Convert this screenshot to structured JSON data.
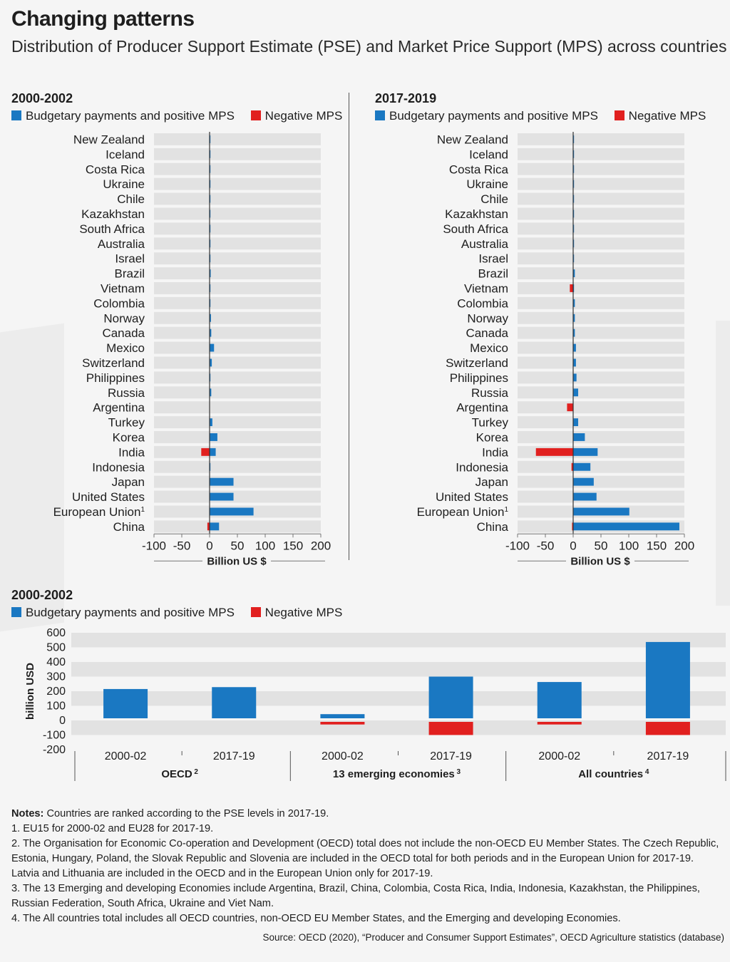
{
  "title": "Changing patterns",
  "subtitle": "Distribution of Producer Support Estimate (PSE) and Market Price Support (MPS) across countries",
  "colors": {
    "positive": "#1a78c2",
    "negative": "#e1201f",
    "band": "#e2e2e2",
    "axis": "#333333"
  },
  "legend": {
    "positive": "Budgetary payments and positive MPS",
    "negative": "Negative MPS"
  },
  "chart_data": [
    {
      "type": "bar",
      "orientation": "horizontal",
      "title": "2000-2002",
      "xlabel": "Billion US $",
      "xlim": [
        -100,
        200
      ],
      "xticks": [
        -100,
        -50,
        0,
        50,
        100,
        150,
        200
      ],
      "categories": [
        "New Zealand",
        "Iceland",
        "Costa Rica",
        "Ukraine",
        "Chile",
        "Kazakhstan",
        "South Africa",
        "Australia",
        "Israel",
        "Brazil",
        "Vietnam",
        "Colombia",
        "Norway",
        "Canada",
        "Mexico",
        "Switzerland",
        "Philippines",
        "Russia",
        "Argentina",
        "Turkey",
        "Korea",
        "India",
        "Indonesia",
        "Japan",
        "United States",
        "European Union",
        "China"
      ],
      "category_notes": [
        "",
        "",
        "",
        "",
        "",
        "",
        "",
        "",
        "",
        "",
        "",
        "",
        "",
        "",
        "",
        "",
        "",
        "",
        "",
        "",
        "",
        "",
        "",
        "",
        "",
        "1",
        ""
      ],
      "series": [
        {
          "name": "Budgetary payments and positive MPS",
          "values": [
            0.3,
            0.1,
            0.2,
            0.3,
            0.2,
            0.3,
            0.4,
            0.8,
            0.6,
            2,
            0.2,
            1.5,
            2.5,
            3,
            8,
            4,
            1.5,
            3,
            0,
            5,
            14,
            11,
            1.5,
            43,
            43,
            79,
            17
          ]
        },
        {
          "name": "Negative MPS",
          "values": [
            0,
            0,
            0,
            0,
            0,
            0,
            0,
            0,
            0,
            0,
            0,
            0,
            0,
            0,
            0,
            0,
            0,
            0,
            0,
            0,
            0,
            -15,
            0,
            0,
            0,
            0,
            -4
          ]
        }
      ]
    },
    {
      "type": "bar",
      "orientation": "horizontal",
      "title": "2017-2019",
      "xlabel": "Billion US $",
      "xlim": [
        -100,
        200
      ],
      "xticks": [
        -100,
        -50,
        0,
        50,
        100,
        150,
        200
      ],
      "categories": [
        "New Zealand",
        "Iceland",
        "Costa Rica",
        "Ukraine",
        "Chile",
        "Kazakhstan",
        "South Africa",
        "Australia",
        "Israel",
        "Brazil",
        "Vietnam",
        "Colombia",
        "Norway",
        "Canada",
        "Mexico",
        "Switzerland",
        "Philippines",
        "Russia",
        "Argentina",
        "Turkey",
        "Korea",
        "India",
        "Indonesia",
        "Japan",
        "United States",
        "European Union",
        "China"
      ],
      "category_notes": [
        "",
        "",
        "",
        "",
        "",
        "",
        "",
        "",
        "",
        "",
        "",
        "",
        "",
        "",
        "",
        "",
        "",
        "",
        "",
        "",
        "",
        "",
        "",
        "",
        "",
        "1",
        ""
      ],
      "series": [
        {
          "name": "Budgetary payments and positive MPS",
          "values": [
            0.2,
            0.3,
            0.3,
            0.5,
            0.4,
            0.8,
            1,
            1.2,
            1.5,
            3,
            0.5,
            3,
            3,
            3,
            5,
            5,
            6,
            9,
            0,
            9,
            21,
            44,
            31,
            37,
            42,
            101,
            191
          ]
        },
        {
          "name": "Negative MPS",
          "values": [
            0,
            0,
            0,
            0,
            0,
            0,
            0,
            0,
            0,
            0,
            -6,
            0,
            0,
            0,
            0,
            0,
            0,
            0,
            -11,
            0,
            0,
            -67,
            -3,
            0,
            0,
            0,
            -2
          ]
        }
      ]
    },
    {
      "type": "bar",
      "orientation": "vertical",
      "title": "2000-2002",
      "ylabel": "billion USD",
      "ylim": [
        -200,
        600
      ],
      "yticks": [
        -200,
        -100,
        0,
        100,
        200,
        300,
        400,
        500,
        600
      ],
      "categories": [
        "2000-02",
        "2017-19",
        "2000-02",
        "2017-19",
        "2000-02",
        "2017-19"
      ],
      "groups": [
        {
          "label": "OECD",
          "note": "2"
        },
        {
          "label": "13 emerging economies",
          "note": "3"
        },
        {
          "label": "All countries",
          "note": "4"
        }
      ],
      "series": [
        {
          "name": "Budgetary payments and positive MPS",
          "values": [
            215,
            228,
            43,
            300,
            263,
            537
          ]
        },
        {
          "name": "Negative MPS",
          "values": [
            0,
            0,
            -18,
            -90,
            -18,
            -90
          ]
        }
      ]
    }
  ],
  "notes": {
    "lead_label": "Notes:",
    "lead_text": " Countries are ranked according to the PSE levels in 2017-19.",
    "items": [
      "1. EU15 for 2000-02 and EU28 for 2017-19.",
      "2. The Organisation for Economic Co-operation and Development (OECD) total does not include the non-OECD EU Member States. The Czech Republic, Estonia, Hungary, Poland, the Slovak Republic and Slovenia are included in the OECD total for both periods and in the European Union for 2017-19. Latvia and Lithuania are included in the OECD and in the European Union only for 2017-19.",
      "3. The 13 Emerging and developing Economies include Argentina, Brazil, China, Colombia, Costa Rica, India, Indonesia, Kazakhstan, the Philippines, Russian Federation, South Africa, Ukraine and Viet Nam.",
      "4. The All countries total includes all OECD countries, non-OECD EU Member States, and the Emerging and developing Economies."
    ]
  },
  "source": "Source: OECD (2020), “Producer and Consumer Support Estimates”, OECD Agriculture statistics (database)"
}
